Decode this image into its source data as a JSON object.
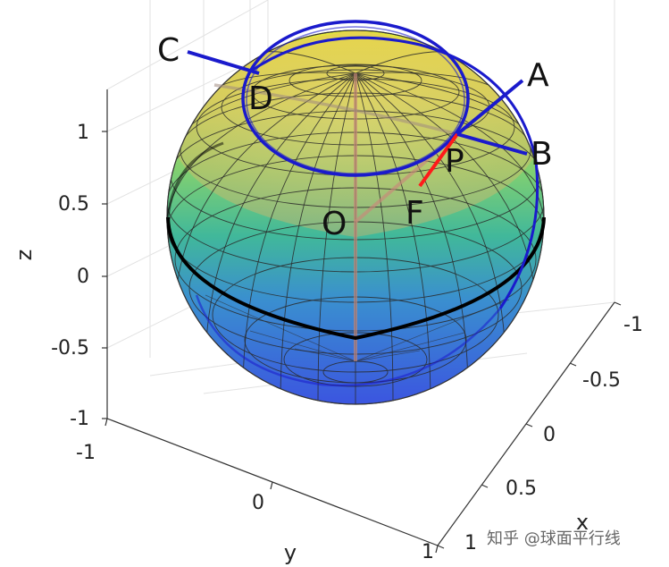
{
  "axes": {
    "z_label": "z",
    "y_label": "y",
    "x_label": "x",
    "z_ticks": [
      "1",
      "0.5",
      "0",
      "-0.5",
      "-1"
    ],
    "y_ticks": [
      "-1",
      "0",
      "1"
    ],
    "x_ticks": [
      "-1",
      "-0.5",
      "0",
      "0.5",
      "1"
    ]
  },
  "points": {
    "A": "A",
    "B": "B",
    "C": "C",
    "D": "D",
    "P": "P",
    "F": "F",
    "O": "O"
  },
  "watermark": "知乎 @球面平行线",
  "colors": {
    "great_circle": "#1a1acc",
    "equator": "#000000",
    "segment_PF": "#ff1a1a",
    "axis_line": "#cc8877"
  }
}
